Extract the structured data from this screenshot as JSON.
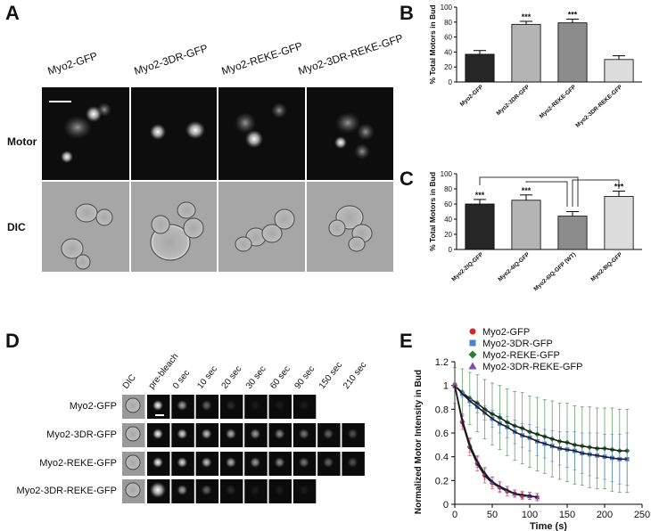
{
  "panel_a": {
    "letter": "A",
    "columns": [
      "Myo2-GFP",
      "Myo2-3DR-GFP",
      "Myo2-REKE-GFP",
      "Myo2-3DR-REKE-GFP"
    ],
    "rows": [
      "Motor",
      "DIC"
    ]
  },
  "panel_d": {
    "letter": "D",
    "columns": [
      "DIC",
      "pre-bleach",
      "0 sec",
      "10 sec",
      "20 sec",
      "30 sec",
      "60 sec",
      "90 sec",
      "150 sec",
      "210 sec"
    ],
    "rows": [
      "Myo2-GFP",
      "Myo2-3DR-GFP",
      "Myo2-REKE-GFP",
      "Myo2-3DR-REKE-GFP"
    ]
  },
  "chart_data": [
    {
      "type": "bar",
      "panel": "B",
      "ylabel": "% Total Motors in Bud",
      "categories": [
        "Myo2-GFP",
        "Myo2-3DR-GFP",
        "Myo2-REKE-GFP",
        "Myo2-3DR-REKE-GFP"
      ],
      "values": [
        37,
        77,
        79,
        30
      ],
      "errors": [
        5,
        4,
        5,
        5
      ],
      "significance": [
        null,
        "***",
        "***",
        null
      ],
      "colors": [
        "#262626",
        "#b4b4b4",
        "#8c8c8c",
        "#dcdcdc"
      ],
      "ylim": [
        0,
        100
      ],
      "yticks": [
        0,
        20,
        40,
        60,
        80,
        100
      ]
    },
    {
      "type": "bar",
      "panel": "C",
      "ylabel": "% Total Motors in  Bud",
      "categories": [
        "Myo2-2IQ-GFP",
        "Myo2-4IQ-GFP",
        "Myo2-6IQ-GFP (WT)",
        "Myo2-8IQ-GFP"
      ],
      "values": [
        60,
        65,
        44,
        70
      ],
      "errors": [
        6,
        7,
        6,
        7
      ],
      "significance": [
        "***",
        "***",
        null,
        "***"
      ],
      "colors": [
        "#262626",
        "#b4b4b4",
        "#8c8c8c",
        "#dcdcdc"
      ],
      "ylim": [
        0,
        100
      ],
      "yticks": [
        0,
        20,
        40,
        60,
        80,
        100
      ]
    },
    {
      "type": "scatter",
      "panel": "E",
      "xlabel": "Time (s)",
      "ylabel": "Normalized Motor Intensity in Bud",
      "xlim": [
        0,
        250
      ],
      "ylim": [
        0,
        1.2
      ],
      "xticks": [
        0,
        50,
        100,
        150,
        200,
        250
      ],
      "yticks": [
        0,
        0.2,
        0.4,
        0.6,
        0.8,
        1,
        1.2
      ],
      "series": [
        {
          "name": "Myo2-GFP",
          "color": "#d62728",
          "marker": "circle",
          "x": [
            0,
            10,
            20,
            30,
            40,
            50,
            60,
            70,
            80,
            90,
            100,
            110
          ],
          "values": [
            1.0,
            0.69,
            0.48,
            0.34,
            0.24,
            0.18,
            0.14,
            0.11,
            0.09,
            0.07,
            0.07,
            0.06
          ],
          "errors": [
            0.02,
            0.06,
            0.07,
            0.06,
            0.06,
            0.05,
            0.04,
            0.04,
            0.03,
            0.03,
            0.03,
            0.03
          ]
        },
        {
          "name": "Myo2-3DR-GFP",
          "color": "#4f7fd1",
          "marker": "square",
          "x": [
            0,
            10,
            20,
            30,
            40,
            50,
            60,
            70,
            80,
            90,
            100,
            110,
            120,
            130,
            140,
            150,
            160,
            170,
            180,
            190,
            200,
            210,
            220,
            230
          ],
          "values": [
            1.0,
            0.93,
            0.87,
            0.82,
            0.77,
            0.72,
            0.68,
            0.65,
            0.61,
            0.58,
            0.56,
            0.53,
            0.51,
            0.49,
            0.47,
            0.46,
            0.45,
            0.43,
            0.42,
            0.41,
            0.4,
            0.39,
            0.38,
            0.38
          ],
          "errors": [
            0.02,
            0.03,
            0.04,
            0.05,
            0.06,
            0.07,
            0.08,
            0.09,
            0.1,
            0.1,
            0.11,
            0.12,
            0.12,
            0.13,
            0.14,
            0.15,
            0.16,
            0.17,
            0.18,
            0.19,
            0.19,
            0.2,
            0.21,
            0.22
          ]
        },
        {
          "name": "Myo2-REKE-GFP",
          "color": "#2e7d32",
          "marker": "diamond",
          "x": [
            0,
            10,
            20,
            30,
            40,
            50,
            60,
            70,
            80,
            90,
            100,
            110,
            120,
            130,
            140,
            150,
            160,
            170,
            180,
            190,
            200,
            210,
            220,
            230
          ],
          "values": [
            1.0,
            0.94,
            0.89,
            0.85,
            0.8,
            0.76,
            0.73,
            0.69,
            0.66,
            0.64,
            0.61,
            0.59,
            0.57,
            0.55,
            0.53,
            0.52,
            0.5,
            0.49,
            0.48,
            0.47,
            0.47,
            0.46,
            0.45,
            0.45
          ],
          "errors": [
            0.15,
            0.2,
            0.22,
            0.24,
            0.25,
            0.26,
            0.27,
            0.28,
            0.29,
            0.3,
            0.3,
            0.31,
            0.31,
            0.32,
            0.32,
            0.33,
            0.33,
            0.33,
            0.34,
            0.34,
            0.34,
            0.35,
            0.35,
            0.35
          ]
        },
        {
          "name": "Myo2-3DR-REKE-GFP",
          "color": "#7b4fb0",
          "marker": "triangle",
          "x": [
            0,
            10,
            20,
            30,
            40,
            50,
            60,
            70,
            80,
            90,
            100,
            110
          ],
          "values": [
            1.0,
            0.71,
            0.5,
            0.36,
            0.26,
            0.19,
            0.15,
            0.12,
            0.09,
            0.08,
            0.07,
            0.06
          ],
          "errors": [
            0.02,
            0.05,
            0.06,
            0.05,
            0.05,
            0.04,
            0.04,
            0.03,
            0.03,
            0.03,
            0.03,
            0.03
          ]
        }
      ]
    }
  ]
}
